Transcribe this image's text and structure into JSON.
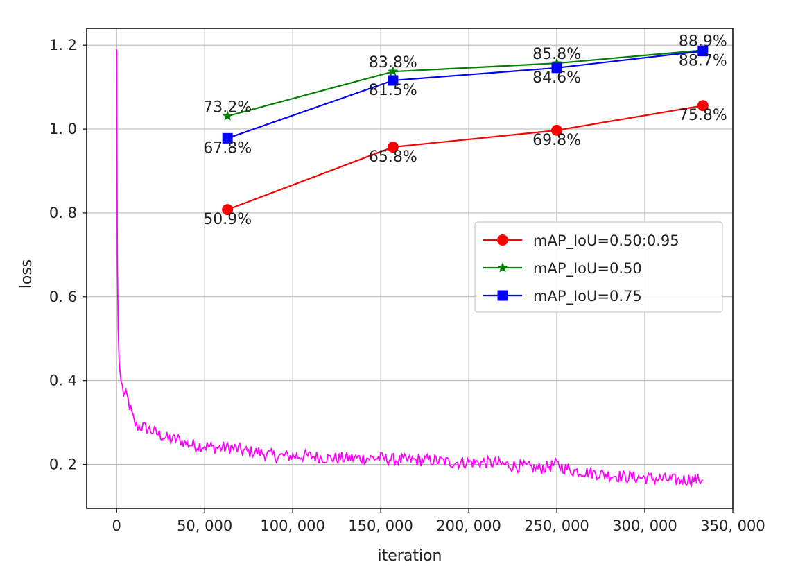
{
  "chart_data": {
    "type": "line",
    "title": "",
    "xlabel": "iteration",
    "ylabel": "loss",
    "xlim": [
      -17000,
      350000
    ],
    "ylim": [
      0.095,
      1.24
    ],
    "grid": true,
    "legend_position": "center-right",
    "x_tick_values": [
      0,
      50000,
      100000,
      150000,
      200000,
      250000,
      300000,
      350000
    ],
    "x_tick_labels": [
      "0",
      "50, 000",
      "100, 000",
      "150, 000",
      "200, 000",
      "250, 000",
      "300, 000",
      "350, 000"
    ],
    "y_tick_values": [
      0.2,
      0.4,
      0.6,
      0.8,
      1.0,
      1.2
    ],
    "y_tick_labels": [
      "0. 2",
      "0. 4",
      "0. 6",
      "0. 8",
      "1. 0",
      "1. 2"
    ],
    "series": [
      {
        "name": "mAP_IoU=0.50:0.95",
        "color": "#ff0000",
        "marker": "circle",
        "x": [
          63000,
          157000,
          250000,
          333000
        ],
        "y": [
          0.808,
          0.957,
          0.997,
          1.056
        ],
        "labels": [
          "50.9%",
          "65.8%",
          "69.8%",
          "75.8%"
        ],
        "label_placement": [
          "below",
          "below",
          "below",
          "below"
        ]
      },
      {
        "name": "mAP_IoU=0.50",
        "color": "#008000",
        "marker": "star",
        "x": [
          63000,
          157000,
          250000,
          333000
        ],
        "y": [
          1.031,
          1.137,
          1.157,
          1.188
        ],
        "labels": [
          "73.2%",
          "83.8%",
          "85.8%",
          "88.9%"
        ],
        "label_placement": [
          "above",
          "above",
          "above",
          "above"
        ]
      },
      {
        "name": "mAP_IoU=0.75",
        "color": "#0000ff",
        "marker": "square",
        "x": [
          63000,
          157000,
          250000,
          333000
        ],
        "y": [
          0.978,
          1.116,
          1.146,
          1.186
        ],
        "labels": [
          "67.8%",
          "81.5%",
          "84.6%",
          "88.7%"
        ],
        "label_placement": [
          "below",
          "below",
          "below",
          "below"
        ]
      }
    ],
    "loss_curve": {
      "name": "loss",
      "color": "#ff00ff",
      "x": [
        0,
        400,
        900,
        1500,
        2500,
        4000,
        6000,
        8000,
        10000,
        12000,
        15000,
        20000,
        25000,
        30000,
        35000,
        40000,
        45000,
        50000,
        55000,
        60000,
        65000,
        70000,
        75000,
        80000,
        85000,
        90000,
        95000,
        100000,
        110000,
        120000,
        130000,
        140000,
        150000,
        160000,
        170000,
        180000,
        190000,
        200000,
        210000,
        220000,
        230000,
        240000,
        245000,
        250000,
        255000,
        260000,
        270000,
        280000,
        290000,
        300000,
        310000,
        320000,
        325000,
        333000
      ],
      "y": [
        1.19,
        0.7,
        0.52,
        0.44,
        0.4,
        0.37,
        0.36,
        0.33,
        0.3,
        0.29,
        0.29,
        0.28,
        0.27,
        0.26,
        0.26,
        0.25,
        0.245,
        0.245,
        0.24,
        0.24,
        0.24,
        0.235,
        0.23,
        0.23,
        0.225,
        0.22,
        0.22,
        0.22,
        0.22,
        0.215,
        0.215,
        0.215,
        0.215,
        0.21,
        0.21,
        0.21,
        0.205,
        0.205,
        0.205,
        0.2,
        0.195,
        0.19,
        0.195,
        0.2,
        0.19,
        0.185,
        0.18,
        0.175,
        0.17,
        0.168,
        0.165,
        0.162,
        0.165,
        0.163
      ]
    }
  }
}
